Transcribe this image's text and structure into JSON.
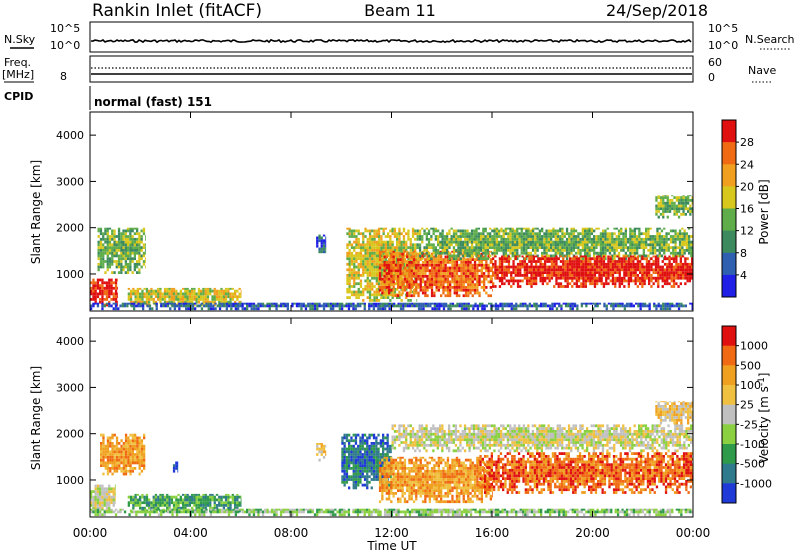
{
  "header": {
    "station": "Rankin Inlet (fitACF)",
    "beam": "Beam 11",
    "date": "24/Sep/2018"
  },
  "panels": {
    "nsky": {
      "label": "N.Sky",
      "right_label": "N.Search",
      "left_ticks": [
        "10^5",
        "10^0"
      ],
      "right_ticks": [
        "10^5",
        "10^0"
      ]
    },
    "freq": {
      "label": "Freq.",
      "unit": "[MHz]",
      "left_ticks": [
        "8"
      ],
      "right_ticks": [
        "60",
        "0"
      ],
      "right_label": "Nave"
    },
    "cpid": {
      "label": "CPID",
      "mode": "normal (fast) 151"
    }
  },
  "chart_data": [
    {
      "type": "heatmap",
      "name": "power",
      "xlabel": "",
      "ylabel": "Slant Range [km]",
      "xlim": [
        0,
        24
      ],
      "ylim": [
        200,
        4500
      ],
      "yticks": [
        "1000",
        "2000",
        "3000",
        "4000"
      ],
      "colorbar": {
        "label": "Power [dB]",
        "ticks": [
          "4",
          "8",
          "12",
          "16",
          "20",
          "24",
          "28"
        ],
        "colors": [
          "#1f1fe6",
          "#2f5fb0",
          "#3c8a5e",
          "#5eac4a",
          "#d8c81e",
          "#f0a01e",
          "#f06a14",
          "#e01010"
        ]
      },
      "features": [
        {
          "t0": 0.0,
          "t1": 1.1,
          "r0": 300,
          "r1": 900,
          "level": 7
        },
        {
          "t0": 0.3,
          "t1": 2.2,
          "r0": 1000,
          "r1": 2000,
          "level": 3
        },
        {
          "t0": 1.5,
          "t1": 6.0,
          "r0": 300,
          "r1": 700,
          "level": 4
        },
        {
          "t0": 9.0,
          "t1": 9.4,
          "r0": 1450,
          "r1": 1850,
          "level": 1
        },
        {
          "t0": 10.2,
          "t1": 13.0,
          "r0": 400,
          "r1": 2000,
          "level": 4
        },
        {
          "t0": 11.5,
          "t1": 16.0,
          "r0": 500,
          "r1": 1500,
          "level": 6
        },
        {
          "t0": 13.0,
          "t1": 24.0,
          "r0": 1300,
          "r1": 2000,
          "level": 3
        },
        {
          "t0": 16.0,
          "t1": 24.0,
          "r0": 700,
          "r1": 1400,
          "level": 7
        },
        {
          "t0": 22.5,
          "t1": 24.0,
          "r0": 2200,
          "r1": 2700,
          "level": 3
        },
        {
          "t0": 0.0,
          "t1": 24.0,
          "r0": 220,
          "r1": 380,
          "level": 1
        }
      ]
    },
    {
      "type": "heatmap",
      "name": "velocity",
      "xlabel": "Time UT",
      "ylabel": "Slant Range [km]",
      "xlim": [
        0,
        24
      ],
      "ylim": [
        200,
        4500
      ],
      "xticks": [
        "00:00",
        "04:00",
        "08:00",
        "12:00",
        "16:00",
        "20:00",
        "00:00"
      ],
      "yticks": [
        "1000",
        "2000",
        "3000",
        "4000"
      ],
      "colorbar": {
        "label": "Velocity [m s^-1]",
        "ticks": [
          "1000",
          "500",
          "100",
          "25",
          "-25",
          "-100",
          "-500",
          "-1000"
        ],
        "colors": [
          "#1f3ad6",
          "#2f7a8c",
          "#2f9a4a",
          "#8ad040",
          "#c0c0c0",
          "#f0c040",
          "#f0a020",
          "#f06a14",
          "#e01010"
        ]
      },
      "features": [
        {
          "t0": 0.0,
          "t1": 1.0,
          "r0": 300,
          "r1": 900,
          "level": 4
        },
        {
          "t0": 0.4,
          "t1": 2.2,
          "r0": 1100,
          "r1": 2000,
          "level": 6
        },
        {
          "t0": 1.5,
          "t1": 6.0,
          "r0": 300,
          "r1": 700,
          "level": 2
        },
        {
          "t0": 3.3,
          "t1": 3.5,
          "r0": 1100,
          "r1": 1400,
          "level": 0
        },
        {
          "t0": 9.0,
          "t1": 9.4,
          "r0": 1400,
          "r1": 1800,
          "level": 5
        },
        {
          "t0": 10.0,
          "t1": 12.0,
          "r0": 800,
          "r1": 2000,
          "level": 1
        },
        {
          "t0": 11.5,
          "t1": 16.0,
          "r0": 500,
          "r1": 1500,
          "level": 6
        },
        {
          "t0": 15.5,
          "t1": 24.0,
          "r0": 700,
          "r1": 1600,
          "level": 7
        },
        {
          "t0": 12.0,
          "t1": 24.0,
          "r0": 1600,
          "r1": 2200,
          "level": 4
        },
        {
          "t0": 22.5,
          "t1": 24.0,
          "r0": 2200,
          "r1": 2700,
          "level": 5
        },
        {
          "t0": 0.0,
          "t1": 24.0,
          "r0": 220,
          "r1": 380,
          "level": 3
        }
      ]
    }
  ]
}
